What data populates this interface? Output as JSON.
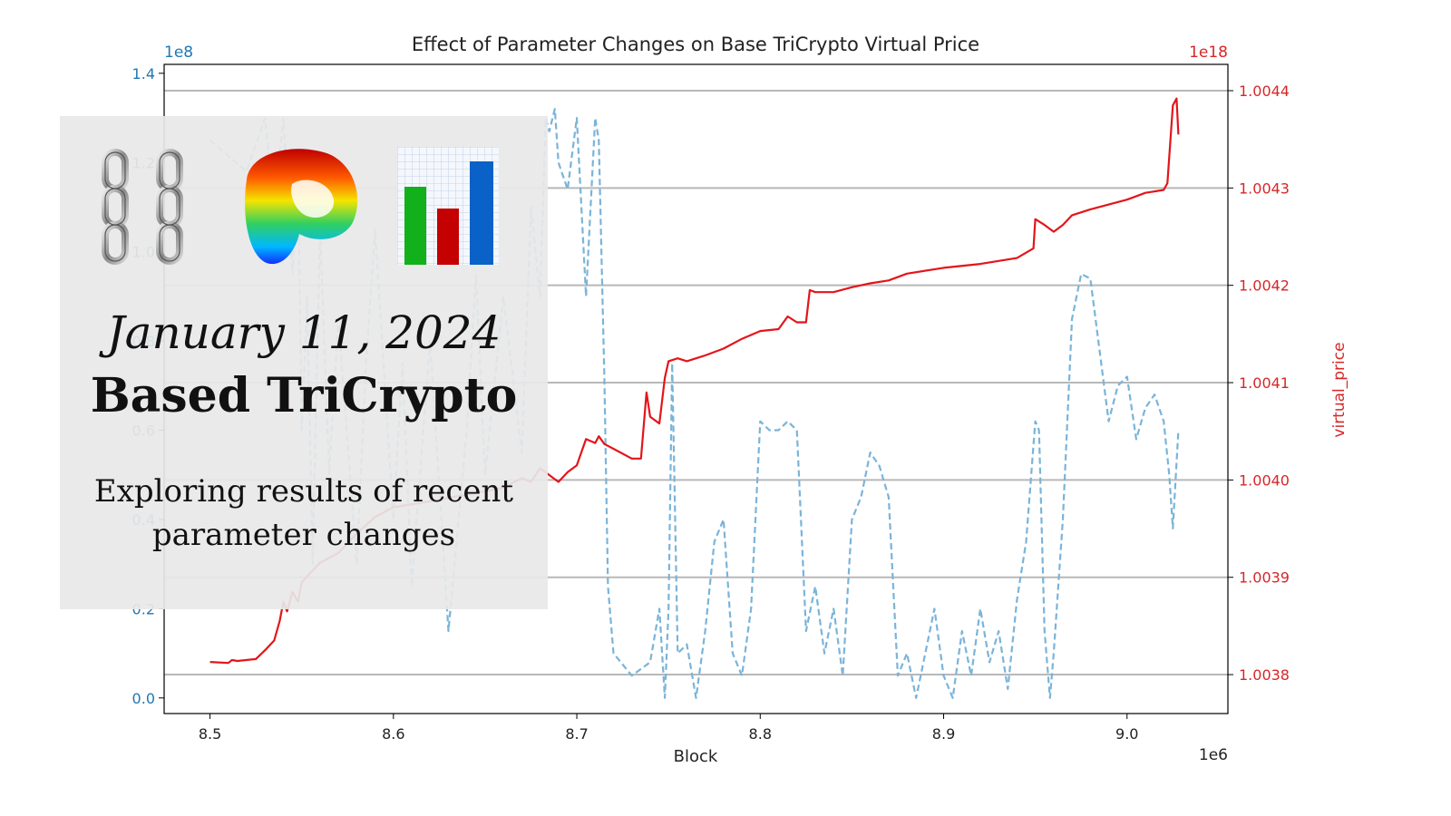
{
  "chart_data": {
    "type": "line",
    "title": "Effect of Parameter Changes on Base TriCrypto Virtual Price",
    "xlabel": "Block",
    "x_multiplier": "1e6",
    "xlim": [
      8.475,
      9.055
    ],
    "xticks": [
      "8.5",
      "8.6",
      "8.7",
      "8.8",
      "8.9",
      "9.0"
    ],
    "left_axis": {
      "multiplier": "1e8",
      "color": "#1f77b4",
      "ylim": [
        -0.035,
        1.42
      ],
      "ticks": [
        "0.0",
        "0.2",
        "0.4",
        "0.6",
        "0.8",
        "1.0",
        "1.2",
        "1.4"
      ]
    },
    "right_axis": {
      "ylabel": "virtual_price",
      "multiplier": "1e18",
      "color": "#d62728",
      "ylim": [
        1.00376,
        1.004427
      ],
      "ticks": [
        "1.0038",
        "1.0039",
        "1.0040",
        "1.0041",
        "1.0042",
        "1.0043",
        "1.0044"
      ]
    },
    "grid": true,
    "series": [
      {
        "axis": "right",
        "color": "#e3151a",
        "style": "solid",
        "x": [
          8.5,
          8.51,
          8.512,
          8.515,
          8.525,
          8.53,
          8.535,
          8.538,
          8.54,
          8.542,
          8.545,
          8.548,
          8.55,
          8.555,
          8.56,
          8.57,
          8.58,
          8.59,
          8.6,
          8.62,
          8.64,
          8.66,
          8.67,
          8.675,
          8.68,
          8.685,
          8.69,
          8.695,
          8.7,
          8.705,
          8.71,
          8.712,
          8.715,
          8.72,
          8.73,
          8.735,
          8.738,
          8.74,
          8.745,
          8.748,
          8.75,
          8.755,
          8.76,
          8.77,
          8.78,
          8.79,
          8.8,
          8.81,
          8.815,
          8.82,
          8.825,
          8.827,
          8.83,
          8.84,
          8.85,
          8.86,
          8.87,
          8.88,
          8.9,
          8.92,
          8.94,
          8.949,
          8.95,
          8.955,
          8.96,
          8.965,
          8.97,
          8.98,
          9.0,
          9.01,
          9.02,
          9.022,
          9.025,
          9.027,
          9.028
        ],
        "y": [
          1.003813,
          1.003812,
          1.003815,
          1.003814,
          1.003816,
          1.003825,
          1.003835,
          1.003855,
          1.003875,
          1.003865,
          1.003885,
          1.003875,
          1.003895,
          1.003905,
          1.003915,
          1.003925,
          1.003945,
          1.003962,
          1.003972,
          1.003978,
          1.003985,
          1.003992,
          1.004002,
          1.003998,
          1.004012,
          1.004005,
          1.003998,
          1.004008,
          1.004015,
          1.004042,
          1.004038,
          1.004045,
          1.004037,
          1.004032,
          1.004022,
          1.004022,
          1.00409,
          1.004065,
          1.004058,
          1.004105,
          1.004122,
          1.004125,
          1.004122,
          1.004128,
          1.004135,
          1.004145,
          1.004153,
          1.004155,
          1.004168,
          1.004162,
          1.004162,
          1.004195,
          1.004193,
          1.004193,
          1.004198,
          1.004202,
          1.004205,
          1.004212,
          1.004218,
          1.004222,
          1.004228,
          1.004238,
          1.004268,
          1.004262,
          1.004255,
          1.004262,
          1.004272,
          1.004278,
          1.004288,
          1.004295,
          1.004298,
          1.004305,
          1.004385,
          1.004392,
          1.004355
        ]
      },
      {
        "axis": "left",
        "color": "#7ab4d9",
        "style": "dashed",
        "x": [
          8.5,
          8.52,
          8.53,
          8.535,
          8.54,
          8.545,
          8.548,
          8.55,
          8.553,
          8.556,
          8.558,
          8.56,
          8.565,
          8.57,
          8.58,
          8.585,
          8.59,
          8.6,
          8.605,
          8.61,
          8.62,
          8.63,
          8.64,
          8.645,
          8.65,
          8.66,
          8.67,
          8.675,
          8.68,
          8.683,
          8.685,
          8.688,
          8.69,
          8.695,
          8.7,
          8.705,
          8.71,
          8.712,
          8.715,
          8.717,
          8.72,
          8.73,
          8.74,
          8.745,
          8.748,
          8.75,
          8.752,
          8.755,
          8.76,
          8.765,
          8.77,
          8.775,
          8.78,
          8.785,
          8.79,
          8.795,
          8.8,
          8.805,
          8.81,
          8.815,
          8.82,
          8.825,
          8.83,
          8.835,
          8.84,
          8.845,
          8.85,
          8.855,
          8.86,
          8.865,
          8.87,
          8.875,
          8.88,
          8.885,
          8.89,
          8.895,
          8.9,
          8.905,
          8.91,
          8.915,
          8.92,
          8.925,
          8.93,
          8.935,
          8.94,
          8.945,
          8.95,
          8.952,
          8.955,
          8.958,
          8.96,
          8.965,
          8.97,
          8.975,
          8.98,
          8.985,
          8.99,
          8.995,
          9.0,
          9.005,
          9.01,
          9.015,
          9.02,
          9.023,
          9.025,
          9.028
        ],
        "y": [
          1.25,
          1.18,
          1.3,
          1.1,
          1.3,
          0.95,
          1.2,
          0.6,
          0.9,
          0.3,
          0.7,
          1.05,
          0.5,
          0.85,
          0.3,
          0.75,
          1.05,
          0.4,
          0.75,
          0.25,
          0.8,
          0.15,
          0.6,
          0.95,
          0.5,
          0.9,
          0.55,
          1.1,
          0.9,
          1.3,
          1.27,
          1.32,
          1.2,
          1.14,
          1.3,
          0.9,
          1.3,
          1.25,
          0.72,
          0.25,
          0.1,
          0.05,
          0.08,
          0.2,
          0.0,
          0.2,
          0.75,
          0.1,
          0.12,
          0.0,
          0.15,
          0.35,
          0.4,
          0.1,
          0.05,
          0.2,
          0.62,
          0.6,
          0.6,
          0.62,
          0.6,
          0.15,
          0.25,
          0.1,
          0.2,
          0.05,
          0.4,
          0.45,
          0.55,
          0.52,
          0.45,
          0.05,
          0.1,
          0.0,
          0.1,
          0.2,
          0.05,
          0.0,
          0.15,
          0.05,
          0.2,
          0.08,
          0.15,
          0.02,
          0.22,
          0.35,
          0.62,
          0.6,
          0.15,
          0.0,
          0.1,
          0.4,
          0.85,
          0.95,
          0.94,
          0.78,
          0.62,
          0.7,
          0.72,
          0.58,
          0.65,
          0.68,
          0.62,
          0.5,
          0.38,
          0.6
        ]
      }
    ]
  },
  "overlay": {
    "date": "January 11, 2024",
    "title": "Based TriCrypto",
    "subtitle": "Exploring results of recent parameter changes"
  },
  "logos": [
    "chain-links-icon",
    "curve-logo-icon",
    "bar-chart-icon"
  ]
}
